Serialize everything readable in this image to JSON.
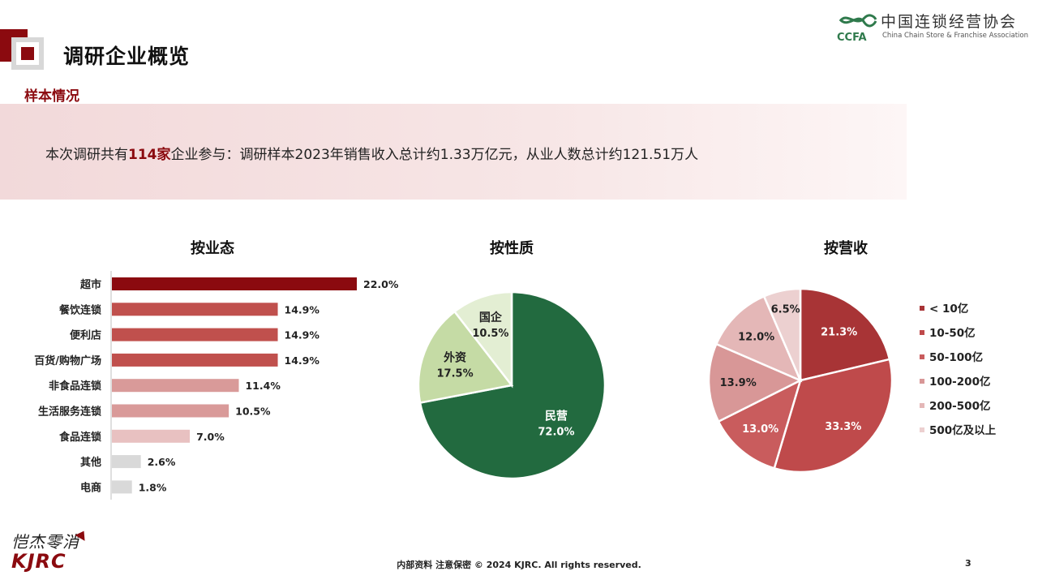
{
  "header": {
    "title": "调研企业概览",
    "section": "样本情况"
  },
  "logo": {
    "cn": "中国连锁经营协会",
    "en": "China Chain Store & Franchise Association",
    "mark": "CCFA"
  },
  "banner": {
    "prefix": "本次调研共有",
    "highlight": "114家",
    "suffix": "企业参与：调研样本2023年销售收入总计约1.33万亿元，从业人数总计约121.51万人"
  },
  "chart_data": [
    {
      "type": "bar",
      "orientation": "horizontal",
      "title": "按业态",
      "categories": [
        "超市",
        "餐饮连锁",
        "便利店",
        "百货/购物广场",
        "非食品连锁",
        "生活服务连锁",
        "食品连锁",
        "其他",
        "电商"
      ],
      "values": [
        22.0,
        14.9,
        14.9,
        14.9,
        11.4,
        10.5,
        7.0,
        2.6,
        1.8
      ],
      "labels": [
        "22.0%",
        "14.9%",
        "14.9%",
        "14.9%",
        "11.4%",
        "10.5%",
        "7.0%",
        "2.6%",
        "1.8%"
      ],
      "colors": [
        "#8b0a0f",
        "#c0504d",
        "#c0504d",
        "#c0504d",
        "#d99a99",
        "#d99a99",
        "#e8c1c1",
        "#d9d9d9",
        "#d9d9d9"
      ],
      "xlim": [
        0,
        22.0
      ]
    },
    {
      "type": "pie",
      "title": "按性质",
      "slices": [
        {
          "name": "民营",
          "value": 72.0,
          "label": "72.0%",
          "color": "#226a3f"
        },
        {
          "name": "外资",
          "value": 17.5,
          "label": "17.5%",
          "color": "#c5dba5"
        },
        {
          "name": "国企",
          "value": 10.5,
          "label": "10.5%",
          "color": "#e3eed3"
        }
      ]
    },
    {
      "type": "pie",
      "title": "按营收",
      "slices": [
        {
          "name": "< 10亿",
          "value": 21.3,
          "label": "21.3%",
          "color": "#a83436"
        },
        {
          "name": "10-50亿",
          "value": 33.3,
          "label": "33.3%",
          "color": "#bf4a4b"
        },
        {
          "name": "50-100亿",
          "value": 13.0,
          "label": "13.0%",
          "color": "#c95c5d"
        },
        {
          "name": "100-200亿",
          "value": 13.9,
          "label": "13.9%",
          "color": "#d89797"
        },
        {
          "name": "200-500亿",
          "value": 12.0,
          "label": "12.0%",
          "color": "#e4b7b7"
        },
        {
          "name": "500亿及以上",
          "value": 6.5,
          "label": "6.5%",
          "color": "#ecd0d0"
        }
      ],
      "legend_position": "right"
    }
  ],
  "footer": {
    "text": "内部资料 注意保密 © 2024 KJRC. All rights reserved.",
    "page": "3",
    "brand_cn": "恺杰零消",
    "brand_en": "KJRC"
  }
}
